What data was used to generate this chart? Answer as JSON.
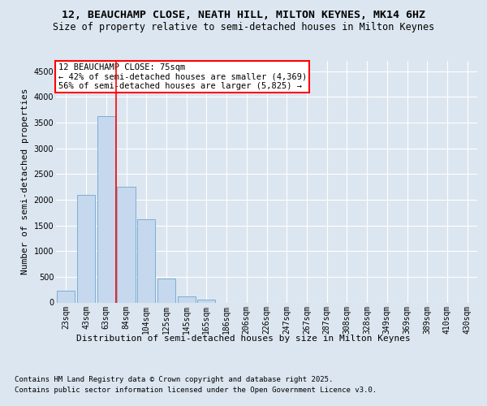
{
  "title": "12, BEAUCHAMP CLOSE, NEATH HILL, MILTON KEYNES, MK14 6HZ",
  "subtitle": "Size of property relative to semi-detached houses in Milton Keynes",
  "xlabel": "Distribution of semi-detached houses by size in Milton Keynes",
  "ylabel": "Number of semi-detached properties",
  "footnote1": "Contains HM Land Registry data © Crown copyright and database right 2025.",
  "footnote2": "Contains public sector information licensed under the Open Government Licence v3.0.",
  "annotation_title": "12 BEAUCHAMP CLOSE: 75sqm",
  "annotation_line1": "← 42% of semi-detached houses are smaller (4,369)",
  "annotation_line2": "56% of semi-detached houses are larger (5,825) →",
  "bar_categories": [
    "23sqm",
    "43sqm",
    "63sqm",
    "84sqm",
    "104sqm",
    "125sqm",
    "145sqm",
    "165sqm",
    "186sqm",
    "206sqm",
    "226sqm",
    "247sqm",
    "267sqm",
    "287sqm",
    "308sqm",
    "328sqm",
    "349sqm",
    "369sqm",
    "389sqm",
    "410sqm",
    "430sqm"
  ],
  "bar_values": [
    230,
    2100,
    3620,
    2250,
    1620,
    460,
    120,
    60,
    0,
    0,
    0,
    0,
    0,
    0,
    0,
    0,
    0,
    0,
    0,
    0,
    0
  ],
  "bar_color": "#c5d8ed",
  "bar_edge_color": "#7aafd4",
  "vline_color": "red",
  "vline_x": 2.5,
  "ylim": [
    0,
    4700
  ],
  "yticks": [
    0,
    500,
    1000,
    1500,
    2000,
    2500,
    3000,
    3500,
    4000,
    4500
  ],
  "bg_color": "#dce6f0",
  "plot_bg_color": "#dce6f0",
  "title_fontsize": 9.5,
  "subtitle_fontsize": 8.5,
  "axis_label_fontsize": 8,
  "tick_fontsize": 7,
  "annotation_fontsize": 7.5,
  "footnote_fontsize": 6.5
}
